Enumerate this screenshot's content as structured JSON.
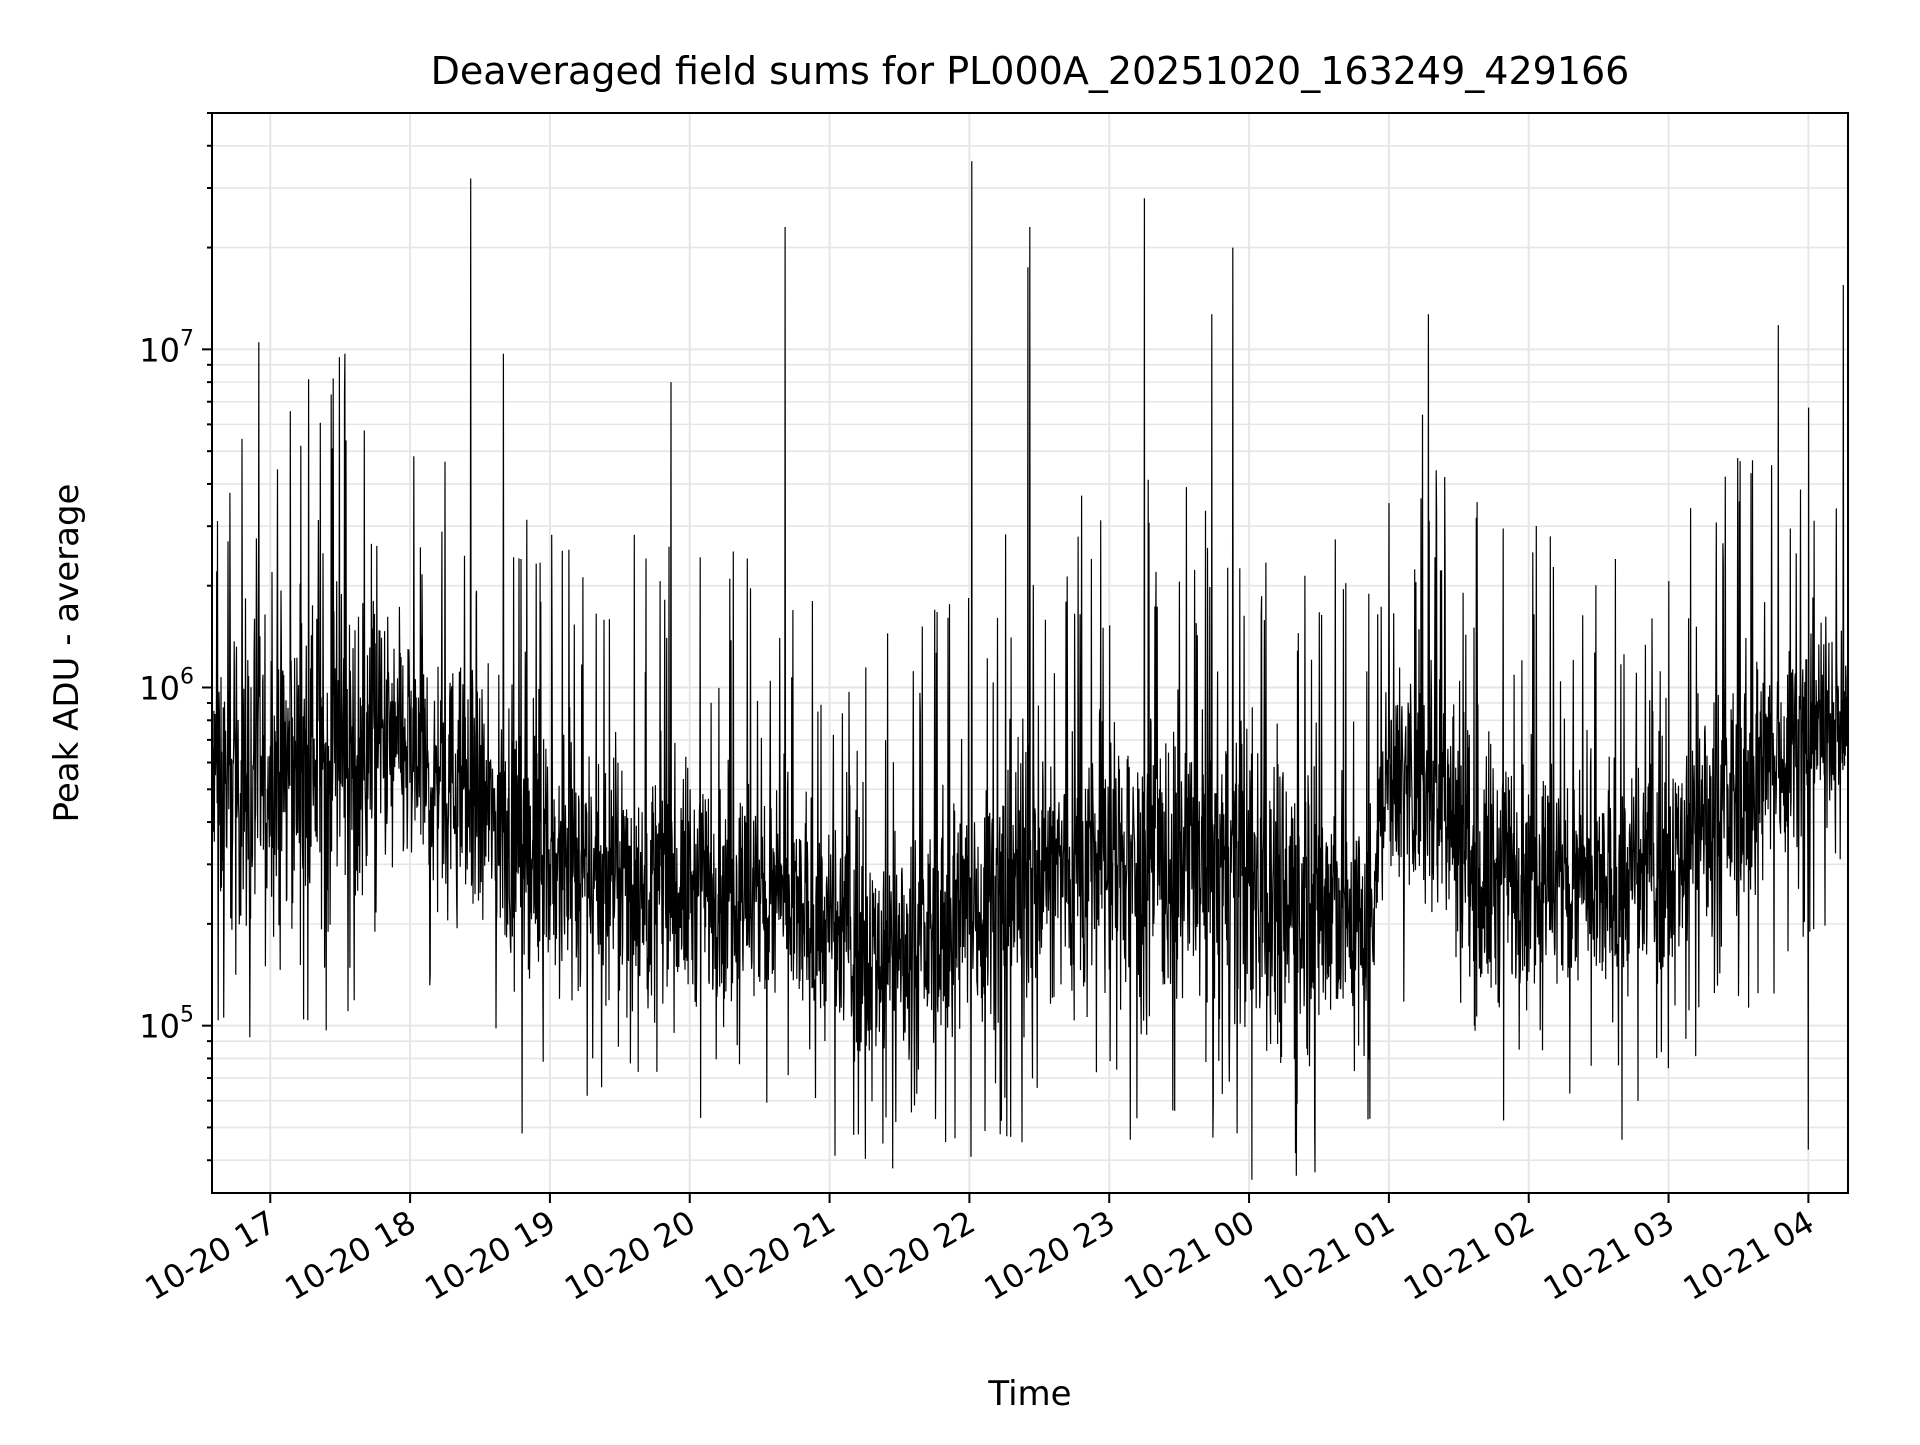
{
  "chart_data": {
    "type": "line",
    "title": "Deaveraged field sums for PL000A_20251020_163249_429166",
    "xlabel": "Time",
    "ylabel": "Peak ADU - average",
    "y_scale": "log",
    "ylim": [
      32000,
      50000000
    ],
    "xlim": [
      "2025-10-20 16:35",
      "2025-10-21 04:17"
    ],
    "grid": true,
    "line_color": "#000000",
    "grid_color": "#e6e6e6",
    "x_ticks": [
      {
        "value": "2025-10-20 17:00",
        "label": "10-20 17"
      },
      {
        "value": "2025-10-20 18:00",
        "label": "10-20 18"
      },
      {
        "value": "2025-10-20 19:00",
        "label": "10-20 19"
      },
      {
        "value": "2025-10-20 20:00",
        "label": "10-20 20"
      },
      {
        "value": "2025-10-20 21:00",
        "label": "10-20 21"
      },
      {
        "value": "2025-10-20 22:00",
        "label": "10-20 22"
      },
      {
        "value": "2025-10-20 23:00",
        "label": "10-20 23"
      },
      {
        "value": "2025-10-21 00:00",
        "label": "10-21 00"
      },
      {
        "value": "2025-10-21 01:00",
        "label": "10-21 01"
      },
      {
        "value": "2025-10-21 02:00",
        "label": "10-21 02"
      },
      {
        "value": "2025-10-21 03:00",
        "label": "10-21 03"
      },
      {
        "value": "2025-10-21 04:00",
        "label": "10-21 04"
      }
    ],
    "y_ticks": [
      {
        "value": 100000,
        "base": "10",
        "exp": "5"
      },
      {
        "value": 1000000,
        "base": "10",
        "exp": "6"
      },
      {
        "value": 10000000,
        "base": "10",
        "exp": "7"
      }
    ],
    "series": [
      {
        "band_profile": [
          {
            "x": "2025-10-20 16:35",
            "lo": 150000,
            "hi": 1500000
          },
          {
            "x": "2025-10-20 17:00",
            "lo": 150000,
            "hi": 2000000
          },
          {
            "x": "2025-10-20 17:30",
            "lo": 150000,
            "hi": 3000000
          },
          {
            "x": "2025-10-20 18:00",
            "lo": 200000,
            "hi": 2000000
          },
          {
            "x": "2025-10-20 18:30",
            "lo": 150000,
            "hi": 1300000
          },
          {
            "x": "2025-10-20 19:00",
            "lo": 100000,
            "hi": 900000
          },
          {
            "x": "2025-10-20 19:30",
            "lo": 90000,
            "hi": 800000
          },
          {
            "x": "2025-10-20 20:00",
            "lo": 80000,
            "hi": 800000
          },
          {
            "x": "2025-10-20 20:30",
            "lo": 80000,
            "hi": 700000
          },
          {
            "x": "2025-10-20 21:00",
            "lo": 70000,
            "hi": 500000
          },
          {
            "x": "2025-10-20 21:30",
            "lo": 60000,
            "hi": 400000
          },
          {
            "x": "2025-10-20 22:00",
            "lo": 70000,
            "hi": 700000
          },
          {
            "x": "2025-10-20 22:30",
            "lo": 80000,
            "hi": 1000000
          },
          {
            "x": "2025-10-20 23:00",
            "lo": 80000,
            "hi": 1200000
          },
          {
            "x": "2025-10-20 23:30",
            "lo": 70000,
            "hi": 1200000
          },
          {
            "x": "2025-10-21 00:00",
            "lo": 60000,
            "hi": 1200000
          },
          {
            "x": "2025-10-21 00:30",
            "lo": 55000,
            "hi": 1000000
          },
          {
            "x": "2025-10-21 00:50",
            "lo": 70000,
            "hi": 500000
          },
          {
            "x": "2025-10-21 01:00",
            "lo": 200000,
            "hi": 1500000
          },
          {
            "x": "2025-10-21 01:20",
            "lo": 150000,
            "hi": 2000000
          },
          {
            "x": "2025-10-21 01:40",
            "lo": 70000,
            "hi": 1000000
          },
          {
            "x": "2025-10-21 02:00",
            "lo": 90000,
            "hi": 900000
          },
          {
            "x": "2025-10-21 02:30",
            "lo": 80000,
            "hi": 700000
          },
          {
            "x": "2025-10-21 03:00",
            "lo": 120000,
            "hi": 800000
          },
          {
            "x": "2025-10-21 03:30",
            "lo": 150000,
            "hi": 1500000
          },
          {
            "x": "2025-10-21 04:00",
            "lo": 300000,
            "hi": 2000000
          },
          {
            "x": "2025-10-21 04:17",
            "lo": 400000,
            "hi": 1500000
          }
        ],
        "spikes": [
          {
            "x": "2025-10-20 16:55",
            "y": 10500000
          },
          {
            "x": "2025-10-20 17:27",
            "y": 8200000
          },
          {
            "x": "2025-10-20 18:26",
            "y": 32000000
          },
          {
            "x": "2025-10-20 18:40",
            "y": 9700000
          },
          {
            "x": "2025-10-20 19:52",
            "y": 8000000
          },
          {
            "x": "2025-10-20 20:41",
            "y": 23000000
          },
          {
            "x": "2025-10-20 22:01",
            "y": 36000000
          },
          {
            "x": "2025-10-20 22:26",
            "y": 23000000
          },
          {
            "x": "2025-10-20 22:25",
            "y": 17500000
          },
          {
            "x": "2025-10-20 23:15",
            "y": 28000000
          },
          {
            "x": "2025-10-20 23:44",
            "y": 12700000
          },
          {
            "x": "2025-10-20 23:53",
            "y": 20000000
          },
          {
            "x": "2025-10-21 01:17",
            "y": 12700000
          },
          {
            "x": "2025-10-21 03:47",
            "y": 11800000
          },
          {
            "x": "2025-10-21 04:15",
            "y": 15500000
          }
        ],
        "dips": [
          {
            "x": "2025-10-20 18:48",
            "y": 48000
          },
          {
            "x": "2025-10-20 23:09",
            "y": 46000
          },
          {
            "x": "2025-10-21 00:20",
            "y": 42000
          },
          {
            "x": "2025-10-21 02:40",
            "y": 46000
          },
          {
            "x": "2025-10-21 04:00",
            "y": 43000
          }
        ]
      }
    ]
  }
}
